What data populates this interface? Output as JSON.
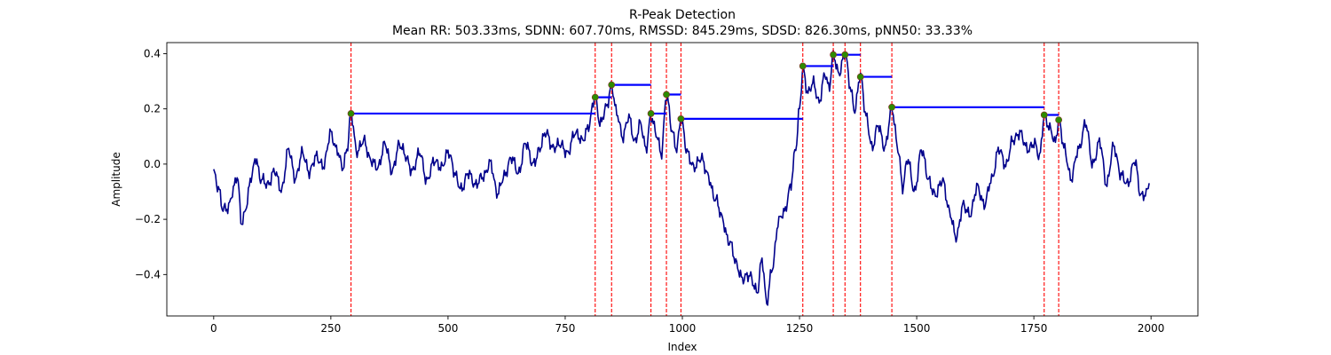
{
  "chart_data": {
    "type": "line",
    "title": "R-Peak Detection",
    "subtitle": "Mean RR: 503.33ms, SDNN: 607.70ms, RMSSD: 845.29ms, SDSD: 826.30ms, pNN50: 33.33%",
    "xlabel": "Index",
    "ylabel": "Amplitude",
    "xlim": [
      -100,
      2100
    ],
    "ylim": [
      -0.55,
      0.44
    ],
    "xticks": [
      0,
      250,
      500,
      750,
      1000,
      1250,
      1500,
      1750,
      2000
    ],
    "xtick_labels": [
      "0",
      "250",
      "500",
      "750",
      "1000",
      "1250",
      "1500",
      "1750",
      "2000"
    ],
    "yticks": [
      -0.4,
      -0.2,
      0.0,
      0.2,
      0.4
    ],
    "ytick_labels": [
      "−0.4",
      "−0.2",
      "0.0",
      "0.2",
      "0.4"
    ],
    "grid": false,
    "colors": {
      "signal": "#00008b",
      "peak_marker": "#2e8b00",
      "peak_line": "#ff0000",
      "rr_interval": "#0000ff"
    },
    "signal_anchors": [
      [
        0,
        -0.03
      ],
      [
        10,
        -0.08
      ],
      [
        20,
        -0.17
      ],
      [
        30,
        -0.16
      ],
      [
        40,
        -0.1
      ],
      [
        50,
        -0.05
      ],
      [
        60,
        -0.21
      ],
      [
        70,
        -0.15
      ],
      [
        80,
        -0.05
      ],
      [
        90,
        0.03
      ],
      [
        100,
        -0.06
      ],
      [
        115,
        -0.07
      ],
      [
        130,
        -0.03
      ],
      [
        145,
        -0.09
      ],
      [
        160,
        0.05
      ],
      [
        175,
        -0.05
      ],
      [
        190,
        0.04
      ],
      [
        205,
        -0.03
      ],
      [
        220,
        0.03
      ],
      [
        235,
        -0.01
      ],
      [
        250,
        0.12
      ],
      [
        262,
        0.05
      ],
      [
        275,
        -0.01
      ],
      [
        285,
        0.06
      ],
      [
        293,
        0.18
      ],
      [
        305,
        0.05
      ],
      [
        320,
        0.08
      ],
      [
        335,
        0.02
      ],
      [
        350,
        -0.02
      ],
      [
        365,
        0.08
      ],
      [
        380,
        -0.03
      ],
      [
        395,
        0.07
      ],
      [
        410,
        0.03
      ],
      [
        425,
        -0.03
      ],
      [
        440,
        0.05
      ],
      [
        455,
        -0.07
      ],
      [
        470,
        0.02
      ],
      [
        485,
        -0.02
      ],
      [
        500,
        0.05
      ],
      [
        515,
        -0.04
      ],
      [
        530,
        -0.09
      ],
      [
        545,
        -0.03
      ],
      [
        560,
        -0.08
      ],
      [
        575,
        -0.04
      ],
      [
        590,
        0.0
      ],
      [
        605,
        -0.1
      ],
      [
        620,
        -0.05
      ],
      [
        635,
        0.03
      ],
      [
        650,
        -0.04
      ],
      [
        665,
        0.08
      ],
      [
        680,
        0.0
      ],
      [
        695,
        0.05
      ],
      [
        710,
        0.12
      ],
      [
        725,
        0.05
      ],
      [
        740,
        0.08
      ],
      [
        755,
        0.03
      ],
      [
        770,
        0.12
      ],
      [
        785,
        0.08
      ],
      [
        800,
        0.14
      ],
      [
        814,
        0.24
      ],
      [
        825,
        0.15
      ],
      [
        838,
        0.2
      ],
      [
        849,
        0.29
      ],
      [
        860,
        0.18
      ],
      [
        872,
        0.1
      ],
      [
        885,
        0.17
      ],
      [
        898,
        0.08
      ],
      [
        910,
        0.15
      ],
      [
        922,
        0.05
      ],
      [
        933,
        0.18
      ],
      [
        945,
        0.1
      ],
      [
        955,
        0.04
      ],
      [
        966,
        0.25
      ],
      [
        978,
        0.12
      ],
      [
        988,
        0.06
      ],
      [
        997,
        0.16
      ],
      [
        1010,
        0.05
      ],
      [
        1025,
        -0.02
      ],
      [
        1040,
        0.03
      ],
      [
        1055,
        -0.05
      ],
      [
        1070,
        -0.12
      ],
      [
        1085,
        -0.2
      ],
      [
        1100,
        -0.28
      ],
      [
        1115,
        -0.36
      ],
      [
        1130,
        -0.42
      ],
      [
        1145,
        -0.4
      ],
      [
        1160,
        -0.47
      ],
      [
        1170,
        -0.34
      ],
      [
        1180,
        -0.5
      ],
      [
        1192,
        -0.38
      ],
      [
        1205,
        -0.2
      ],
      [
        1218,
        -0.18
      ],
      [
        1230,
        -0.08
      ],
      [
        1242,
        0.05
      ],
      [
        1250,
        0.2
      ],
      [
        1257,
        0.35
      ],
      [
        1268,
        0.25
      ],
      [
        1280,
        0.3
      ],
      [
        1292,
        0.22
      ],
      [
        1305,
        0.33
      ],
      [
        1313,
        0.28
      ],
      [
        1322,
        0.39
      ],
      [
        1333,
        0.33
      ],
      [
        1347,
        0.4
      ],
      [
        1358,
        0.28
      ],
      [
        1368,
        0.2
      ],
      [
        1380,
        0.32
      ],
      [
        1392,
        0.18
      ],
      [
        1405,
        0.05
      ],
      [
        1418,
        0.15
      ],
      [
        1432,
        0.05
      ],
      [
        1447,
        0.21
      ],
      [
        1460,
        0.05
      ],
      [
        1470,
        -0.08
      ],
      [
        1480,
        0.02
      ],
      [
        1495,
        -0.1
      ],
      [
        1510,
        0.05
      ],
      [
        1525,
        -0.05
      ],
      [
        1540,
        -0.12
      ],
      [
        1555,
        -0.05
      ],
      [
        1570,
        -0.18
      ],
      [
        1585,
        -0.26
      ],
      [
        1600,
        -0.15
      ],
      [
        1615,
        -0.18
      ],
      [
        1630,
        -0.08
      ],
      [
        1645,
        -0.15
      ],
      [
        1660,
        -0.05
      ],
      [
        1675,
        0.05
      ],
      [
        1690,
        0.0
      ],
      [
        1705,
        0.08
      ],
      [
        1720,
        0.12
      ],
      [
        1735,
        0.05
      ],
      [
        1750,
        0.08
      ],
      [
        1762,
        0.02
      ],
      [
        1772,
        0.18
      ],
      [
        1785,
        0.12
      ],
      [
        1795,
        0.08
      ],
      [
        1803,
        0.16
      ],
      [
        1815,
        0.05
      ],
      [
        1830,
        -0.05
      ],
      [
        1845,
        0.05
      ],
      [
        1860,
        0.15
      ],
      [
        1875,
        0.0
      ],
      [
        1890,
        0.08
      ],
      [
        1905,
        -0.07
      ],
      [
        1920,
        0.06
      ],
      [
        1935,
        -0.03
      ],
      [
        1950,
        -0.08
      ],
      [
        1965,
        0.02
      ],
      [
        1978,
        -0.12
      ],
      [
        1990,
        -0.1
      ],
      [
        1997,
        -0.06
      ]
    ],
    "peaks": [
      {
        "x": 293,
        "y": 0.183
      },
      {
        "x": 814,
        "y": 0.242
      },
      {
        "x": 849,
        "y": 0.287
      },
      {
        "x": 933,
        "y": 0.183
      },
      {
        "x": 966,
        "y": 0.252
      },
      {
        "x": 997,
        "y": 0.164
      },
      {
        "x": 1257,
        "y": 0.355
      },
      {
        "x": 1322,
        "y": 0.396
      },
      {
        "x": 1347,
        "y": 0.396
      },
      {
        "x": 1380,
        "y": 0.316
      },
      {
        "x": 1447,
        "y": 0.206
      },
      {
        "x": 1772,
        "y": 0.178
      },
      {
        "x": 1803,
        "y": 0.16
      }
    ]
  }
}
